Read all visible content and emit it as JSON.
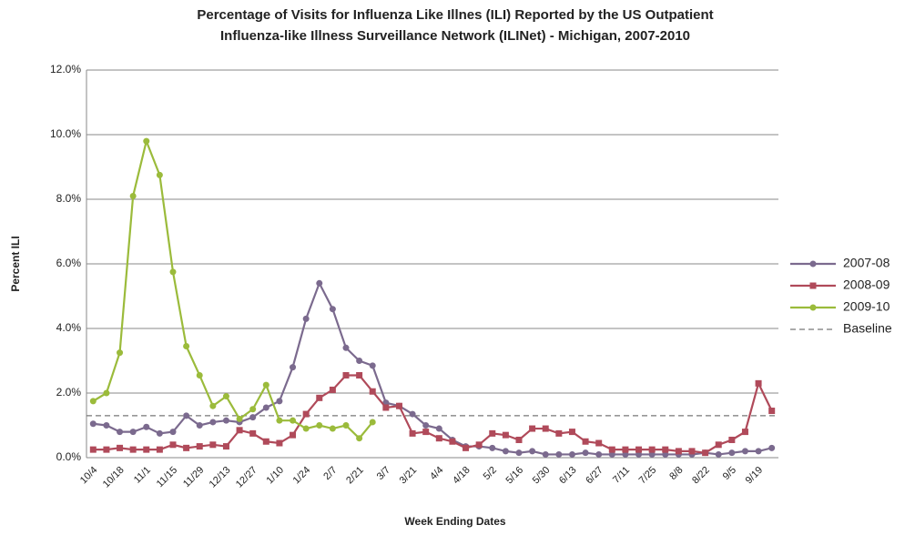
{
  "chart_data": {
    "type": "line",
    "title": [
      "Percentage of Visits for Influenza Like Illnes (ILI) Reported by the US Outpatient",
      "Influenza-like Illness Surveillance Network (ILINet)  - Michigan, 2007-2010"
    ],
    "x_label": "Week Ending Dates",
    "y_label": "Percent ILI",
    "categories": [
      "10/4",
      null,
      "10/18",
      null,
      "11/1",
      null,
      "11/15",
      null,
      "11/29",
      null,
      "12/13",
      null,
      "12/27",
      null,
      "1/10",
      null,
      "1/24",
      null,
      "2/7",
      null,
      "2/21",
      null,
      "3/7",
      null,
      "3/21",
      null,
      "4/4",
      null,
      "4/18",
      null,
      "5/2",
      null,
      "5/16",
      null,
      "5/30",
      null,
      "6/13",
      null,
      "6/27",
      null,
      "7/11",
      null,
      "7/25",
      null,
      "8/8",
      null,
      "8/22",
      null,
      "9/5",
      null,
      "9/19",
      null
    ],
    "series": [
      {
        "name": "2007-08",
        "color": "#7b6a8e",
        "marker": "circle",
        "values": [
          1.05,
          1.0,
          0.8,
          0.8,
          0.95,
          0.75,
          0.8,
          1.3,
          1.0,
          1.1,
          1.15,
          1.1,
          1.25,
          1.55,
          1.75,
          2.8,
          4.3,
          5.4,
          4.6,
          3.4,
          3.0,
          2.85,
          1.7,
          1.6,
          1.35,
          1.0,
          0.9,
          0.55,
          0.35,
          0.35,
          0.3,
          0.2,
          0.15,
          0.2,
          0.1,
          0.1,
          0.1,
          0.15,
          0.1,
          0.1,
          0.1,
          0.1,
          0.1,
          0.1,
          0.1,
          0.1,
          0.15,
          0.1,
          0.15,
          0.2,
          0.2,
          0.3
        ]
      },
      {
        "name": "2008-09",
        "color": "#b04a5a",
        "marker": "square",
        "values": [
          0.25,
          0.25,
          0.3,
          0.25,
          0.25,
          0.25,
          0.4,
          0.3,
          0.35,
          0.4,
          0.35,
          0.85,
          0.75,
          0.5,
          0.45,
          0.7,
          1.35,
          1.85,
          2.1,
          2.55,
          2.55,
          2.05,
          1.55,
          1.6,
          0.75,
          0.8,
          0.6,
          0.5,
          0.3,
          0.4,
          0.75,
          0.7,
          0.55,
          0.9,
          0.9,
          0.75,
          0.8,
          0.5,
          0.45,
          0.25,
          0.25,
          0.25,
          0.25,
          0.25,
          0.2,
          0.2,
          0.15,
          0.4,
          0.55,
          0.8,
          2.3,
          1.45
        ]
      },
      {
        "name": "2009-10",
        "color": "#9bbb3b",
        "marker": "circle",
        "values": [
          1.75,
          2.0,
          3.25,
          8.1,
          9.8,
          8.75,
          5.75,
          3.45,
          2.55,
          1.6,
          1.9,
          1.2,
          1.5,
          2.25,
          1.15,
          1.15,
          0.9,
          1.0,
          0.9,
          1.0,
          0.6,
          1.1,
          null,
          null,
          null,
          null,
          null,
          null,
          null,
          null,
          null,
          null,
          null,
          null,
          null,
          null,
          null,
          null,
          null,
          null,
          null,
          null,
          null,
          null,
          null,
          null,
          null,
          null,
          null,
          null,
          null,
          null
        ]
      }
    ],
    "baseline": {
      "name": "Baseline",
      "value": 1.3,
      "color": "#777777"
    },
    "ylim": [
      0,
      12
    ],
    "yticks": [
      {
        "value": 0,
        "label": "0.0%"
      },
      {
        "value": 2,
        "label": "2.0%"
      },
      {
        "value": 4,
        "label": "4.0%"
      },
      {
        "value": 6,
        "label": "6.0%"
      },
      {
        "value": 8,
        "label": "8.0%"
      },
      {
        "value": 10,
        "label": "10.0%"
      },
      {
        "value": 12,
        "label": "12.0%"
      }
    ],
    "grid": true,
    "legend": "right"
  }
}
